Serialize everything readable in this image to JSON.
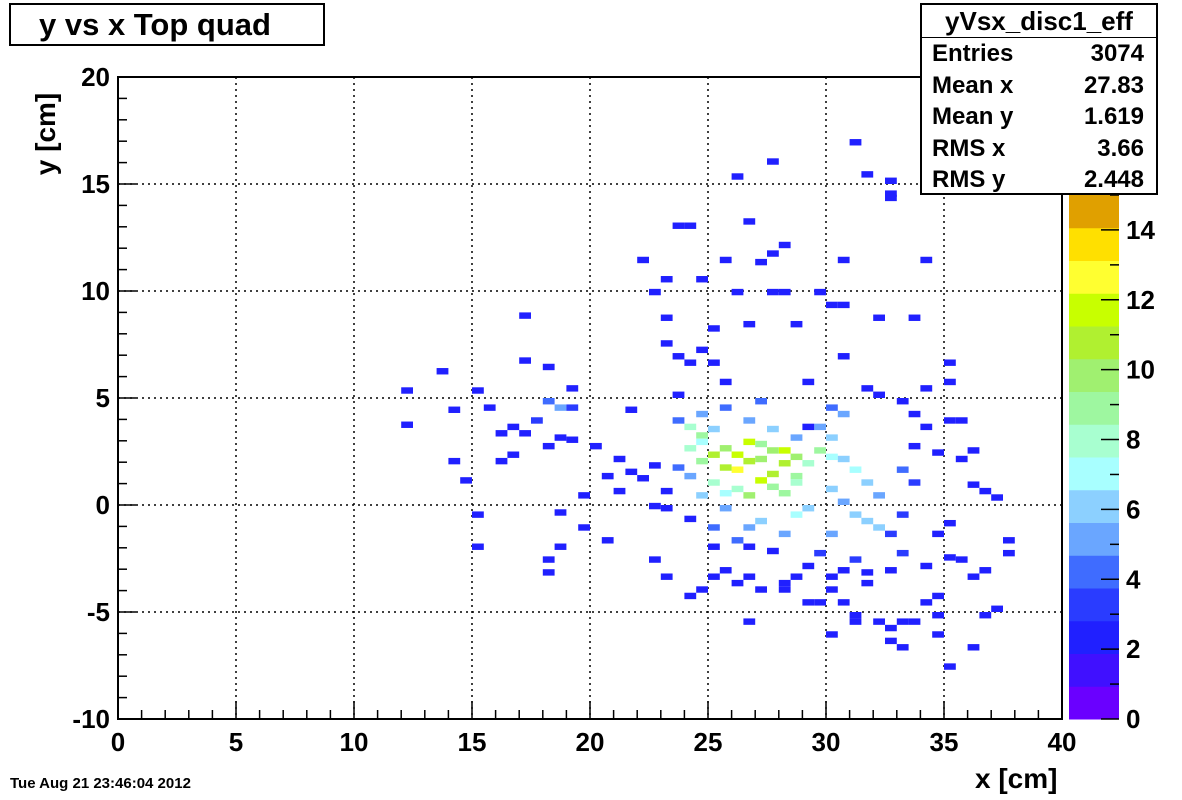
{
  "title": "y vs x Top quad",
  "stats": {
    "name": "yVsx_disc1_eff",
    "rows": [
      {
        "label": "Entries",
        "value": "3074"
      },
      {
        "label": "Mean x",
        "value": "27.83"
      },
      {
        "label": "Mean y",
        "value": "1.619"
      },
      {
        "label": "RMS x",
        "value": "3.66"
      },
      {
        "label": "RMS y",
        "value": "2.448"
      }
    ]
  },
  "timestamp": "Tue Aug 21 23:46:04 2012",
  "colors": {
    "frame": "#000000",
    "grid": "#000000"
  },
  "chart_data": {
    "type": "heatmap",
    "xlabel": "x [cm]",
    "ylabel": "y [cm]",
    "xlim": [
      0,
      40
    ],
    "ylim": [
      -10,
      20
    ],
    "x_ticks": [
      "0",
      "5",
      "10",
      "15",
      "20",
      "25",
      "30",
      "35",
      "40"
    ],
    "y_ticks": [
      "-10",
      "-5",
      "0",
      "5",
      "10",
      "15",
      "20"
    ],
    "grid": true,
    "bin_width": 0.5,
    "bin_height": 0.3,
    "colorbar": {
      "min": 0,
      "max": 15,
      "ticks": [
        "0",
        "2",
        "4",
        "6",
        "8",
        "10",
        "12",
        "14"
      ],
      "colors": [
        "#6a00ff",
        "#4010ff",
        "#2020ff",
        "#2a3cff",
        "#3f6cff",
        "#6aa6ff",
        "#8cd0ff",
        "#a8ffff",
        "#a8ffd0",
        "#9ef7a0",
        "#a0f070",
        "#b0f030",
        "#c8ff00",
        "#ffff30",
        "#ffe000",
        "#e0a000"
      ]
    },
    "cells": [
      [
        25,
        2.2,
        11
      ],
      [
        25.5,
        2.5,
        10
      ],
      [
        24.5,
        1.9,
        9
      ],
      [
        26,
        1.5,
        13
      ],
      [
        26.5,
        2.8,
        12
      ],
      [
        27,
        2.0,
        10
      ],
      [
        27.5,
        1.3,
        11
      ],
      [
        28,
        2.4,
        12
      ],
      [
        28.5,
        2.1,
        10
      ],
      [
        24,
        3.5,
        8
      ],
      [
        24.5,
        3.1,
        9
      ],
      [
        25,
        3.4,
        6
      ],
      [
        25.5,
        1.6,
        11
      ],
      [
        26,
        2.2,
        12
      ],
      [
        26.5,
        1.9,
        11
      ],
      [
        27,
        2.7,
        9
      ],
      [
        27.5,
        2.4,
        10
      ],
      [
        28,
        1.8,
        11
      ],
      [
        28.5,
        1.2,
        9
      ],
      [
        29,
        1.8,
        8
      ],
      [
        29.5,
        2.4,
        9
      ],
      [
        30,
        2.1,
        7
      ],
      [
        26,
        0.6,
        8
      ],
      [
        26.5,
        0.3,
        10
      ],
      [
        27,
        1.0,
        12
      ],
      [
        27.5,
        0.7,
        9
      ],
      [
        28,
        0.4,
        9
      ],
      [
        28.5,
        0.9,
        8
      ],
      [
        25,
        0.9,
        8
      ],
      [
        25.5,
        0.4,
        7
      ],
      [
        24,
        2.5,
        8
      ],
      [
        24.5,
        2.8,
        7
      ],
      [
        30,
        3.0,
        6
      ],
      [
        30.5,
        2.0,
        6
      ],
      [
        31,
        1.5,
        7
      ],
      [
        31.5,
        0.9,
        6
      ],
      [
        30,
        0.6,
        6
      ],
      [
        30.5,
        0.0,
        5
      ],
      [
        31,
        -0.6,
        6
      ],
      [
        31.5,
        -0.9,
        6
      ],
      [
        32,
        0.3,
        5
      ],
      [
        32,
        -1.2,
        6
      ],
      [
        30,
        -1.5,
        5
      ],
      [
        29,
        -0.3,
        6
      ],
      [
        28.5,
        -0.6,
        7
      ],
      [
        28,
        -1.5,
        5
      ],
      [
        27,
        -0.9,
        6
      ],
      [
        26.5,
        -1.2,
        5
      ],
      [
        25.5,
        -0.3,
        5
      ],
      [
        25,
        -1.2,
        4
      ],
      [
        26,
        -1.8,
        4
      ],
      [
        24.5,
        0.3,
        6
      ],
      [
        24,
        1.2,
        5
      ],
      [
        23.5,
        1.6,
        4
      ],
      [
        23.5,
        3.8,
        4
      ],
      [
        24.5,
        4.1,
        5
      ],
      [
        25.5,
        4.4,
        4
      ],
      [
        26.5,
        3.8,
        5
      ],
      [
        27,
        4.7,
        4
      ],
      [
        27.5,
        3.4,
        6
      ],
      [
        28.5,
        3.0,
        5
      ],
      [
        29.5,
        3.5,
        5
      ],
      [
        30,
        4.4,
        4
      ],
      [
        30.5,
        4.1,
        5
      ],
      [
        33,
        1.5,
        4
      ],
      [
        33.5,
        0.9,
        3
      ],
      [
        33,
        -0.6,
        3
      ],
      [
        32.5,
        -1.5,
        3
      ],
      [
        33,
        -2.4,
        3
      ],
      [
        31,
        -2.7,
        3
      ],
      [
        29.5,
        -2.4,
        3
      ],
      [
        18.5,
        4.4,
        5
      ],
      [
        18,
        4.7,
        4
      ],
      [
        19,
        4.4,
        3
      ],
      [
        17.5,
        3.8,
        3
      ],
      [
        16.5,
        3.5,
        2
      ],
      [
        16,
        3.2,
        2
      ],
      [
        17,
        3.2,
        2
      ],
      [
        18,
        2.6,
        2
      ],
      [
        19,
        2.9,
        2
      ],
      [
        20,
        2.6,
        2
      ],
      [
        21,
        2.0,
        2
      ],
      [
        21.5,
        1.4,
        2
      ],
      [
        22,
        1.1,
        2
      ],
      [
        22.5,
        1.7,
        2
      ],
      [
        23,
        0.5,
        2
      ],
      [
        24,
        -0.8,
        2
      ],
      [
        23,
        -0.3,
        2
      ],
      [
        22.5,
        -0.2,
        2
      ],
      [
        25,
        -2.1,
        2
      ],
      [
        26.5,
        -2.1,
        2
      ],
      [
        27.5,
        -2.3,
        2
      ],
      [
        29,
        -3.0,
        2
      ],
      [
        31.5,
        -3.3,
        2
      ],
      [
        32.5,
        -3.2,
        2
      ],
      [
        34,
        -3.0,
        2
      ],
      [
        35,
        -2.6,
        2
      ],
      [
        34.5,
        -1.5,
        2
      ],
      [
        35,
        -1.0,
        2
      ],
      [
        36,
        0.8,
        2
      ],
      [
        36.5,
        0.5,
        2
      ],
      [
        37,
        0.2,
        2
      ],
      [
        35.5,
        2.0,
        2
      ],
      [
        34.5,
        2.3,
        2
      ],
      [
        33.5,
        2.6,
        2
      ],
      [
        36,
        2.4,
        2
      ],
      [
        35,
        3.8,
        2
      ],
      [
        12,
        5.2,
        2
      ],
      [
        12,
        3.6,
        2
      ],
      [
        13.5,
        6.1,
        2
      ],
      [
        14,
        4.3,
        2
      ],
      [
        14,
        1.9,
        2
      ],
      [
        14.5,
        1.0,
        2
      ],
      [
        15,
        5.2,
        2
      ],
      [
        15.5,
        4.4,
        2
      ],
      [
        15,
        -0.6,
        2
      ],
      [
        15,
        -2.1,
        2
      ],
      [
        16,
        1.9,
        2
      ],
      [
        16.5,
        2.2,
        2
      ],
      [
        17,
        8.7,
        2
      ],
      [
        17,
        6.6,
        2
      ],
      [
        18,
        6.3,
        2
      ],
      [
        18.5,
        3.0,
        2
      ],
      [
        19,
        5.3,
        2
      ],
      [
        19.5,
        -1.2,
        2
      ],
      [
        18.5,
        -0.5,
        2
      ],
      [
        18.5,
        -2.1,
        2
      ],
      [
        18,
        -2.7,
        2
      ],
      [
        18,
        -3.3,
        2
      ],
      [
        19.5,
        0.3,
        2
      ],
      [
        20.5,
        1.2,
        2
      ],
      [
        21.5,
        4.3,
        2
      ],
      [
        21,
        0.5,
        2
      ],
      [
        20.5,
        -1.8,
        2
      ],
      [
        22.5,
        -2.7,
        2
      ],
      [
        23,
        -3.5,
        2
      ],
      [
        22,
        11.3,
        2
      ],
      [
        22.5,
        9.8,
        2
      ],
      [
        23,
        10.4,
        2
      ],
      [
        23,
        8.6,
        2
      ],
      [
        23,
        7.4,
        2
      ],
      [
        23.5,
        5.0,
        2
      ],
      [
        23.5,
        6.8,
        2
      ],
      [
        23.5,
        12.9,
        2
      ],
      [
        24,
        12.9,
        2
      ],
      [
        24.5,
        10.4,
        2
      ],
      [
        24,
        6.5,
        2
      ],
      [
        24.5,
        7.1,
        2
      ],
      [
        25,
        8.1,
        2
      ],
      [
        25,
        6.5,
        2
      ],
      [
        25.5,
        5.6,
        2
      ],
      [
        25.5,
        11.3,
        2
      ],
      [
        26,
        9.8,
        2
      ],
      [
        26,
        15.2,
        2
      ],
      [
        26.5,
        13.1,
        2
      ],
      [
        26.5,
        8.3,
        2
      ],
      [
        27,
        11.2,
        2
      ],
      [
        27.5,
        15.9,
        2
      ],
      [
        27.5,
        11.6,
        2
      ],
      [
        27.5,
        9.8,
        2
      ],
      [
        28,
        12.0,
        2
      ],
      [
        28,
        9.8,
        2
      ],
      [
        28.5,
        8.3,
        2
      ],
      [
        29,
        5.6,
        2
      ],
      [
        29,
        3.5,
        2
      ],
      [
        29.5,
        9.8,
        2
      ],
      [
        30,
        9.2,
        2
      ],
      [
        30.5,
        11.3,
        2
      ],
      [
        30.5,
        6.8,
        2
      ],
      [
        30.5,
        9.2,
        2
      ],
      [
        31,
        16.8,
        2
      ],
      [
        31.5,
        5.3,
        2
      ],
      [
        31.5,
        15.3,
        2
      ],
      [
        32,
        5.0,
        2
      ],
      [
        32,
        8.6,
        2
      ],
      [
        32.5,
        15.0,
        2
      ],
      [
        32.5,
        14.4,
        2
      ],
      [
        32.5,
        14.2,
        2
      ],
      [
        33,
        4.7,
        2
      ],
      [
        33.5,
        4.1,
        2
      ],
      [
        33.5,
        8.6,
        2
      ],
      [
        34,
        11.3,
        2
      ],
      [
        34,
        5.3,
        2
      ],
      [
        34,
        3.5,
        2
      ],
      [
        35,
        6.5,
        2
      ],
      [
        35,
        5.6,
        2
      ],
      [
        35.5,
        3.8,
        2
      ],
      [
        24,
        -4.4,
        2
      ],
      [
        24.5,
        -4.1,
        2
      ],
      [
        25,
        -3.5,
        2
      ],
      [
        25.5,
        -3.2,
        2
      ],
      [
        26,
        -3.8,
        2
      ],
      [
        26.5,
        -3.5,
        2
      ],
      [
        27,
        -4.1,
        2
      ],
      [
        26.5,
        -5.6,
        2
      ],
      [
        28,
        -3.8,
        2
      ],
      [
        28,
        -4.1,
        2
      ],
      [
        28.5,
        -3.5,
        2
      ],
      [
        29,
        -4.7,
        2
      ],
      [
        29.5,
        -4.7,
        2
      ],
      [
        30,
        -4.1,
        2
      ],
      [
        30,
        -3.5,
        2
      ],
      [
        30,
        -6.2,
        2
      ],
      [
        30.5,
        -4.7,
        2
      ],
      [
        30.5,
        -3.2,
        2
      ],
      [
        31,
        -5.3,
        2
      ],
      [
        31,
        -5.6,
        2
      ],
      [
        31.5,
        -3.8,
        2
      ],
      [
        32,
        -5.6,
        2
      ],
      [
        32.5,
        -5.9,
        2
      ],
      [
        33,
        -5.6,
        2
      ],
      [
        33,
        -6.8,
        2
      ],
      [
        32.5,
        -6.5,
        2
      ],
      [
        33.5,
        -5.6,
        2
      ],
      [
        34,
        -4.7,
        2
      ],
      [
        34.5,
        -4.4,
        2
      ],
      [
        34.5,
        -5.3,
        2
      ],
      [
        34.5,
        -6.2,
        2
      ],
      [
        35,
        -7.7,
        2
      ],
      [
        36,
        -6.8,
        2
      ],
      [
        36,
        -3.5,
        2
      ],
      [
        37,
        -5.0,
        2
      ],
      [
        36.5,
        -5.3,
        2
      ],
      [
        37.5,
        -1.8,
        2
      ],
      [
        37.5,
        -2.4,
        2
      ],
      [
        36.5,
        -3.2,
        2
      ],
      [
        35.5,
        -2.7,
        2
      ]
    ]
  }
}
